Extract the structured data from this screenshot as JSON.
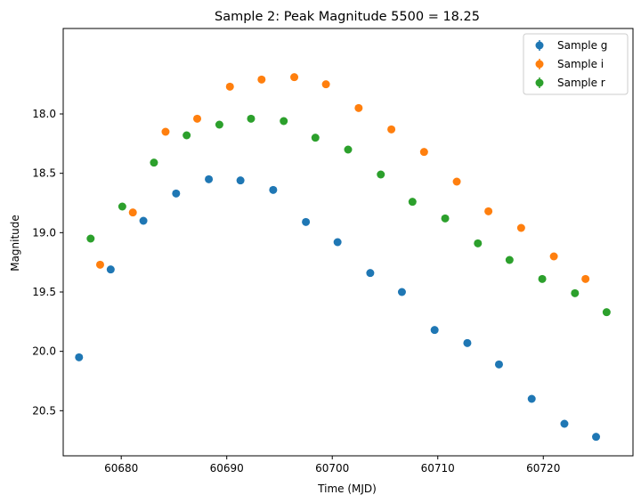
{
  "chart_data": {
    "type": "scatter",
    "title": "Sample 2: Peak Magnitude 5500 = 18.25",
    "xlabel": "Time (MJD)",
    "ylabel": "Magnitude",
    "xlim": [
      60674.5,
      60728.5
    ],
    "ylim": [
      20.88,
      17.28
    ],
    "y_inverted": true,
    "grid": false,
    "legend_position": "top-right",
    "x_ticks": [
      60680,
      60690,
      60700,
      60710,
      60720
    ],
    "y_ticks": [
      18.0,
      18.5,
      19.0,
      19.5,
      20.0,
      20.5
    ],
    "x_tick_labels": [
      "60680",
      "60690",
      "60700",
      "60710",
      "60720"
    ],
    "y_tick_labels": [
      "18.0",
      "18.5",
      "19.0",
      "19.5",
      "20.0",
      "20.5"
    ],
    "series": [
      {
        "name": "Sample g",
        "color": "#1f77b4",
        "x": [
          60676.0,
          60679.0,
          60682.1,
          60685.2,
          60688.3,
          60691.3,
          60694.4,
          60697.5,
          60700.5,
          60703.6,
          60706.6,
          60709.7,
          60712.8,
          60715.8,
          60718.9,
          60722.0,
          60725.0
        ],
        "y": [
          20.05,
          19.31,
          18.9,
          18.67,
          18.55,
          18.56,
          18.64,
          18.91,
          19.08,
          19.34,
          19.5,
          19.82,
          19.93,
          20.11,
          20.4,
          20.61,
          20.72
        ]
      },
      {
        "name": "Sample i",
        "color": "#ff7f0e",
        "x": [
          60678.0,
          60681.1,
          60684.2,
          60687.2,
          60690.3,
          60693.3,
          60696.4,
          60699.4,
          60702.5,
          60705.6,
          60708.7,
          60711.8,
          60714.8,
          60717.9,
          60721.0,
          60724.0
        ],
        "y": [
          19.27,
          18.83,
          18.15,
          18.04,
          17.77,
          17.71,
          17.69,
          17.75,
          17.95,
          18.13,
          18.32,
          18.57,
          18.82,
          18.96,
          19.2,
          19.39
        ]
      },
      {
        "name": "Sample r",
        "color": "#2ca02c",
        "x": [
          60677.1,
          60680.1,
          60683.1,
          60686.2,
          60689.3,
          60692.3,
          60695.4,
          60698.4,
          60701.5,
          60704.6,
          60707.6,
          60710.7,
          60713.8,
          60716.8,
          60719.9,
          60723.0,
          60726.0
        ],
        "y": [
          19.05,
          18.78,
          18.41,
          18.18,
          18.09,
          18.04,
          18.06,
          18.2,
          18.3,
          18.51,
          18.74,
          18.88,
          19.09,
          19.23,
          19.39,
          19.51,
          19.67
        ]
      }
    ]
  }
}
